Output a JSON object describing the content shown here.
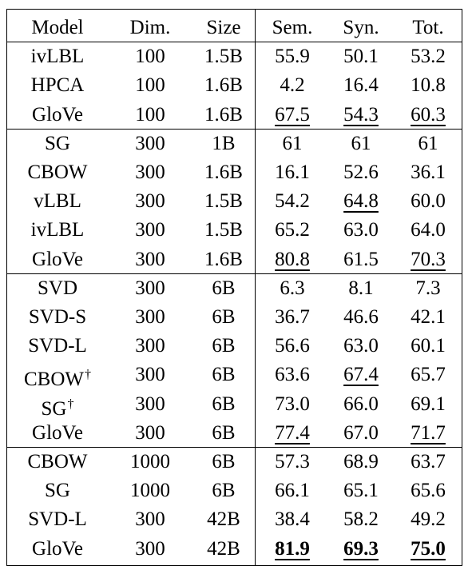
{
  "table": {
    "headers": [
      "Model",
      "Dim.",
      "Size",
      "Sem.",
      "Syn.",
      "Tot."
    ],
    "rows": [
      {
        "model": "ivLBL",
        "dim": "100",
        "size": "1.5B",
        "sem": "55.9",
        "syn": "50.1",
        "tot": "53.2"
      },
      {
        "model": "HPCA",
        "dim": "100",
        "size": "1.6B",
        "sem": "4.2",
        "syn": "16.4",
        "tot": "10.8"
      },
      {
        "model": "GloVe",
        "dim": "100",
        "size": "1.6B",
        "sem": "67.5",
        "syn": "54.3",
        "tot": "60.3"
      },
      {
        "model": "SG",
        "dim": "300",
        "size": "1B",
        "sem": "61",
        "syn": "61",
        "tot": "61"
      },
      {
        "model": "CBOW",
        "dim": "300",
        "size": "1.6B",
        "sem": "16.1",
        "syn": "52.6",
        "tot": "36.1"
      },
      {
        "model": "vLBL",
        "dim": "300",
        "size": "1.5B",
        "sem": "54.2",
        "syn": "64.8",
        "tot": "60.0"
      },
      {
        "model": "ivLBL",
        "dim": "300",
        "size": "1.5B",
        "sem": "65.2",
        "syn": "63.0",
        "tot": "64.0"
      },
      {
        "model": "GloVe",
        "dim": "300",
        "size": "1.6B",
        "sem": "80.8",
        "syn": "61.5",
        "tot": "70.3"
      },
      {
        "model": "SVD",
        "dim": "300",
        "size": "6B",
        "sem": "6.3",
        "syn": "8.1",
        "tot": "7.3"
      },
      {
        "model": "SVD-S",
        "dim": "300",
        "size": "6B",
        "sem": "36.7",
        "syn": "46.6",
        "tot": "42.1"
      },
      {
        "model": "SVD-L",
        "dim": "300",
        "size": "6B",
        "sem": "56.6",
        "syn": "63.0",
        "tot": "60.1"
      },
      {
        "model": "CBOW",
        "model_mark": "†",
        "dim": "300",
        "size": "6B",
        "sem": "63.6",
        "syn": "67.4",
        "tot": "65.7"
      },
      {
        "model": "SG",
        "model_mark": "†",
        "dim": "300",
        "size": "6B",
        "sem": "73.0",
        "syn": "66.0",
        "tot": "69.1"
      },
      {
        "model": "GloVe",
        "dim": "300",
        "size": "6B",
        "sem": "77.4",
        "syn": "67.0",
        "tot": "71.7"
      },
      {
        "model": "CBOW",
        "dim": "1000",
        "size": "6B",
        "sem": "57.3",
        "syn": "68.9",
        "tot": "63.7"
      },
      {
        "model": "SG",
        "dim": "1000",
        "size": "6B",
        "sem": "66.1",
        "syn": "65.1",
        "tot": "65.6"
      },
      {
        "model": "SVD-L",
        "dim": "300",
        "size": "42B",
        "sem": "38.4",
        "syn": "58.2",
        "tot": "49.2"
      },
      {
        "model": "GloVe",
        "dim": "300",
        "size": "42B",
        "sem": "81.9",
        "syn": "69.3",
        "tot": "75.0"
      }
    ],
    "underlined": [
      [
        2,
        "sem"
      ],
      [
        2,
        "syn"
      ],
      [
        2,
        "tot"
      ],
      [
        5,
        "syn"
      ],
      [
        7,
        "sem"
      ],
      [
        7,
        "tot"
      ],
      [
        11,
        "syn"
      ],
      [
        13,
        "sem"
      ],
      [
        13,
        "tot"
      ],
      [
        17,
        "sem"
      ],
      [
        17,
        "syn"
      ],
      [
        17,
        "tot"
      ]
    ],
    "bold": [
      [
        17,
        "sem"
      ],
      [
        17,
        "syn"
      ],
      [
        17,
        "tot"
      ]
    ],
    "group_breaks_after_rows": [
      2,
      7,
      13
    ]
  }
}
